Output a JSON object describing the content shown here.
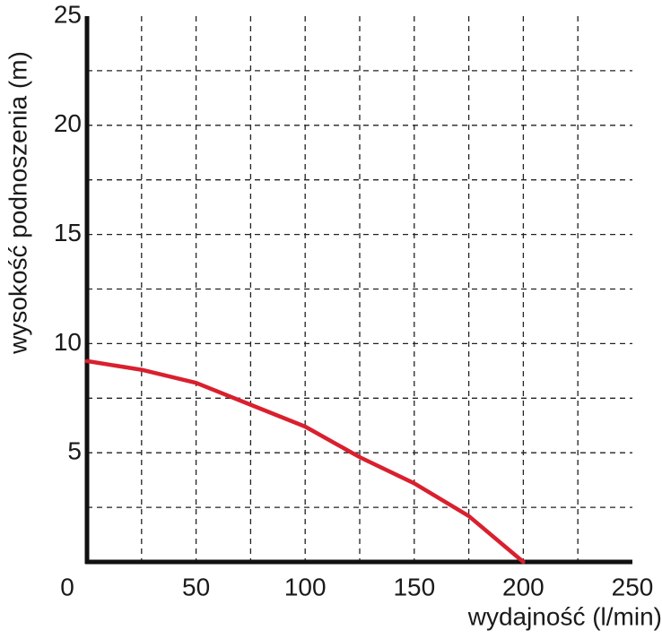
{
  "chart_data": {
    "type": "line",
    "x_label": "wydajność (l/min)",
    "y_label": "wysokość podnoszenia (m)",
    "x": [
      0,
      25,
      50,
      75,
      100,
      125,
      150,
      175,
      200
    ],
    "series": [
      {
        "color": "#d9202e",
        "values": [
          9.2,
          8.8,
          8.2,
          7.2,
          6.2,
          4.8,
          3.6,
          2.1,
          0
        ]
      }
    ],
    "xlim": [
      0,
      250
    ],
    "xticks": [
      0,
      50,
      100,
      150,
      200,
      250
    ],
    "ylim": [
      0,
      25
    ],
    "yticks": [
      5,
      10,
      15,
      20,
      25
    ],
    "grid": true
  }
}
